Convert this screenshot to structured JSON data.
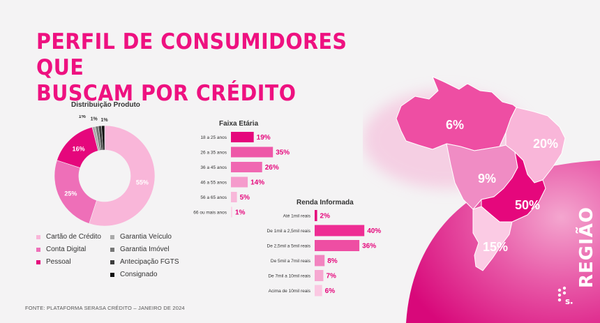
{
  "title": [
    "PERFIL DE CONSUMIDORES QUE",
    "BUSCAM POR CRÉDITO"
  ],
  "footer": "FONTE: PLATAFORMA SERASA CRÉDITO  –  JANEIRO DE 2024",
  "region_label": "REGIÃO",
  "colors": {
    "accent": "#ee1180"
  },
  "chart_data": [
    {
      "type": "pie",
      "title": "Distribuição Produto",
      "categories": [
        "Cartão de Crédito",
        "Conta Digital",
        "Pessoal",
        "Garantia Veículo",
        "Garantia Imóvel",
        "Antecipação FGTS",
        "Consignado"
      ],
      "values": [
        55,
        25,
        16,
        1,
        1,
        1,
        1
      ],
      "labels": [
        "55%",
        "25%",
        "16%",
        "1%",
        "1%",
        "1%",
        "1%"
      ],
      "colors": [
        "#f9b6d9",
        "#ee6fb8",
        "#e5077c",
        "#a9a9a9",
        "#777777",
        "#3d3d3d",
        "#111111"
      ],
      "legend": "bottom"
    },
    {
      "type": "bar",
      "orientation": "horizontal",
      "title": "Faixa Etária",
      "categories": [
        "18 a 25 anos",
        "26 a 35 anos",
        "36 a 45 anos",
        "46 a 55 anos",
        "56 a 65 anos",
        "66 ou mais anos"
      ],
      "values": [
        19,
        35,
        26,
        14,
        5,
        1
      ],
      "labels": [
        "19%",
        "35%",
        "26%",
        "14%",
        "5%",
        "1%"
      ],
      "colors": [
        "#e5077c",
        "#ee57a8",
        "#f068b2",
        "#f59bcc",
        "#f8b8da",
        "#fbd2e8"
      ]
    },
    {
      "type": "bar",
      "orientation": "horizontal",
      "title": "Renda Informada",
      "categories": [
        "Até 1mil reais",
        "De 1mil a 2,5mil reais",
        "De 2,5mil a 5mil reais",
        "De 5mil a 7mil reais",
        "De 7mil a 10mil reais",
        "Acima de 10mil reais"
      ],
      "values": [
        2,
        40,
        36,
        8,
        7,
        6
      ],
      "labels": [
        "2%",
        "40%",
        "36%",
        "8%",
        "7%",
        "6%"
      ],
      "colors": [
        "#e5077c",
        "#ee2d94",
        "#ee4ea3",
        "#f284c0",
        "#f6a8d1",
        "#fac8e2"
      ]
    },
    {
      "type": "map",
      "regions": [
        "Norte",
        "Nordeste",
        "Centro-Oeste",
        "Sudeste",
        "Sul"
      ],
      "values": [
        6,
        20,
        9,
        50,
        15
      ],
      "labels": [
        "6%",
        "20%",
        "9%",
        "50%",
        "15%"
      ],
      "colors": [
        "#ee4ea3",
        "#f9b6d9",
        "#f08cc4",
        "#e5077c",
        "#fbcbe4"
      ]
    }
  ]
}
